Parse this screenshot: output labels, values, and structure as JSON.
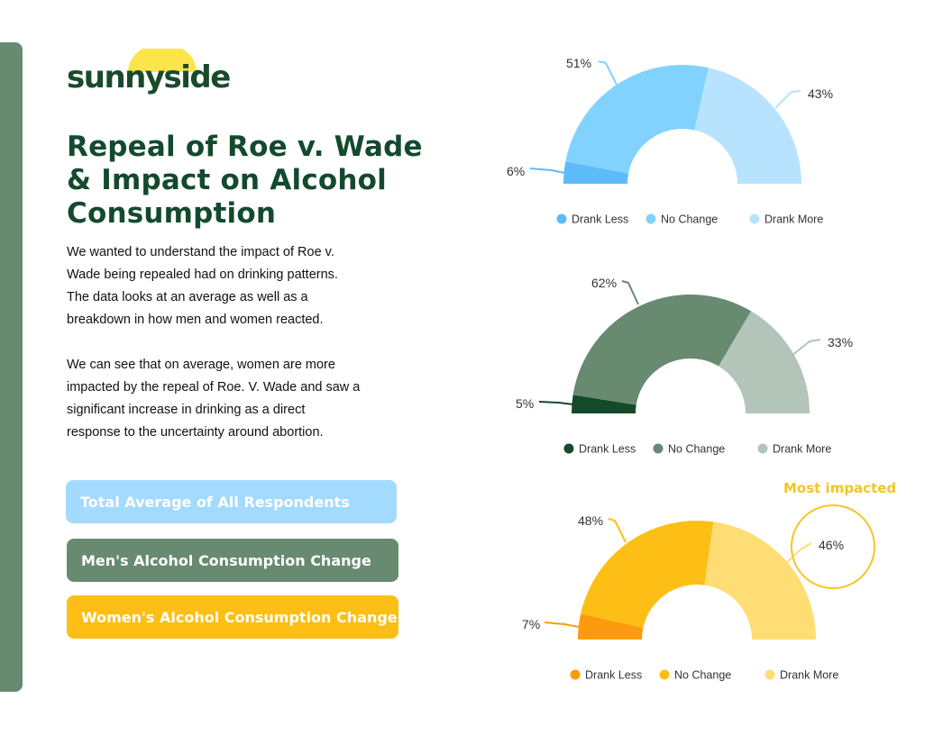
{
  "brand": {
    "name": "sunnyside",
    "sun_color": "#fbe54a",
    "text_color": "#1a4a2c"
  },
  "title": "Repeal of Roe v. Wade\n& Impact on Alcohol\nConsumption",
  "paragraphs": [
    "We wanted to understand the impact of Roe v.\nWade being repealed had on drinking patterns.\nThe data looks at an average as well as a\nbreakdown in how men and women reacted.",
    "We can see that on average, women are more\nimpacted by the repeal of Roe. V. Wade and saw a\nsignificant increase in drinking as a direct\nresponse to the uncertainty around abortion."
  ],
  "buttons": {
    "total": "Total Average of All Respondents",
    "men": "Men's Alcohol Consumption Change",
    "women": "Women's Alcohol Consumption Change"
  },
  "colors": {
    "sidebar": "#678a70",
    "title": "#134a2d",
    "highlight": "#f3c622"
  },
  "callout": "Most impacted",
  "chart_data": [
    {
      "type": "pie",
      "variant": "half-donut",
      "group": "Total Average of All Respondents",
      "categories": [
        "Drank Less",
        "No Change",
        "Drank More"
      ],
      "values": [
        6,
        51,
        43
      ],
      "labels": [
        "6%",
        "51%",
        "43%"
      ],
      "colors": [
        "#5bbcf9",
        "#82d2ff",
        "#b8e3ff"
      ],
      "legend": "bottom"
    },
    {
      "type": "pie",
      "variant": "half-donut",
      "group": "Men's Alcohol Consumption Change",
      "categories": [
        "Drank Less",
        "No Change",
        "Drank More"
      ],
      "values": [
        5,
        62,
        33
      ],
      "labels": [
        "5%",
        "62%",
        "33%"
      ],
      "colors": [
        "#144a2a",
        "#678a70",
        "#b2c5b8"
      ],
      "legend": "bottom"
    },
    {
      "type": "pie",
      "variant": "half-donut",
      "group": "Women's Alcohol Consumption Change",
      "categories": [
        "Drank Less",
        "No Change",
        "Drank More"
      ],
      "values": [
        7,
        48,
        46
      ],
      "labels": [
        "7%",
        "48%",
        "46%"
      ],
      "colors": [
        "#fd9a0d",
        "#fdbf16",
        "#fedd75"
      ],
      "legend": "bottom",
      "highlight": "Drank More"
    }
  ]
}
